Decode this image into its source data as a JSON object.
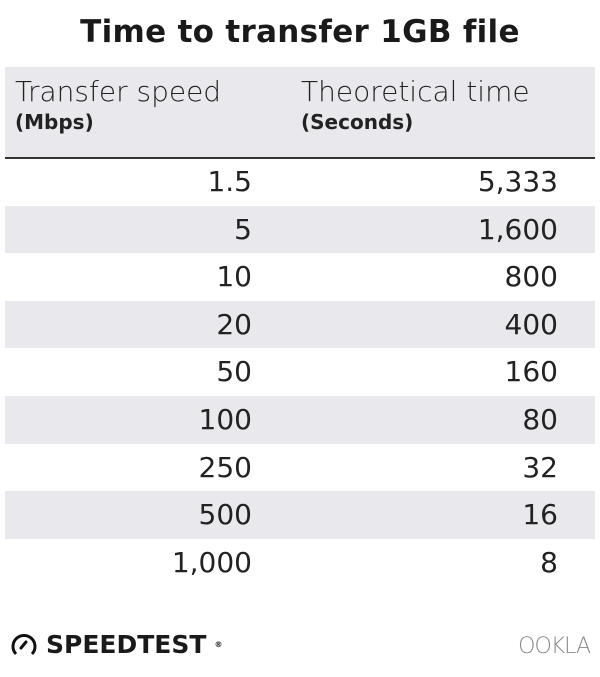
{
  "chart_data": {
    "type": "table",
    "title": "Time to transfer 1GB file",
    "columns": [
      {
        "label": "Transfer speed",
        "unit": "(Mbps)"
      },
      {
        "label": "Theoretical time",
        "unit": "(Seconds)"
      }
    ],
    "rows": [
      [
        "1.5",
        "5,333"
      ],
      [
        "5",
        "1,600"
      ],
      [
        "10",
        "800"
      ],
      [
        "20",
        "400"
      ],
      [
        "50",
        "160"
      ],
      [
        "100",
        "80"
      ],
      [
        "250",
        "32"
      ],
      [
        "500",
        "16"
      ],
      [
        "1,000",
        "8"
      ]
    ]
  },
  "footer": {
    "brand": "SPEEDTEST",
    "company": "OOKLA"
  },
  "colors": {
    "band": "#e9e8ec"
  }
}
